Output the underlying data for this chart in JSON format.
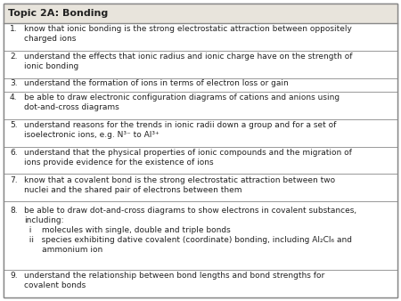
{
  "title": "Topic 2A: Bonding",
  "bg_color": "#ffffff",
  "border_color": "#888888",
  "header_bg": "#e8e4dc",
  "text_color": "#222222",
  "rows": [
    {
      "num": "1.",
      "text": "know that ionic bonding is the strong electrostatic attraction between oppositely\ncharged ions"
    },
    {
      "num": "2.",
      "text": "understand the effects that ionic radius and ionic charge have on the strength of\nionic bonding"
    },
    {
      "num": "3.",
      "text": "understand the formation of ions in terms of electron loss or gain"
    },
    {
      "num": "4.",
      "text": "be able to draw electronic configuration diagrams of cations and anions using\ndot-and-cross diagrams"
    },
    {
      "num": "5.",
      "text": "understand reasons for the trends in ionic radii down a group and for a set of\nisoelectronic ions, e.g. N³⁻ to Al³⁺"
    },
    {
      "num": "6.",
      "text": "understand that the physical properties of ionic compounds and the migration of\nions provide evidence for the existence of ions"
    },
    {
      "num": "7.",
      "text": "know that a covalent bond is the strong electrostatic attraction between two\nnuclei and the shared pair of electrons between them"
    },
    {
      "num": "8.",
      "text": "be able to draw dot-and-cross diagrams to show electrons in covalent substances,\nincluding:\n  i    molecules with single, double and triple bonds\n  ii   species exhibiting dative covalent (coordinate) bonding, including Al₂Cl₆ and\n       ammonium ion"
    },
    {
      "num": "9.",
      "text": "understand the relationship between bond lengths and bond strengths for\ncovalent bonds"
    }
  ],
  "row_line_counts": [
    2,
    2,
    1,
    2,
    2,
    2,
    2,
    5,
    2
  ],
  "font_size": 6.5,
  "title_font_size": 8.0
}
